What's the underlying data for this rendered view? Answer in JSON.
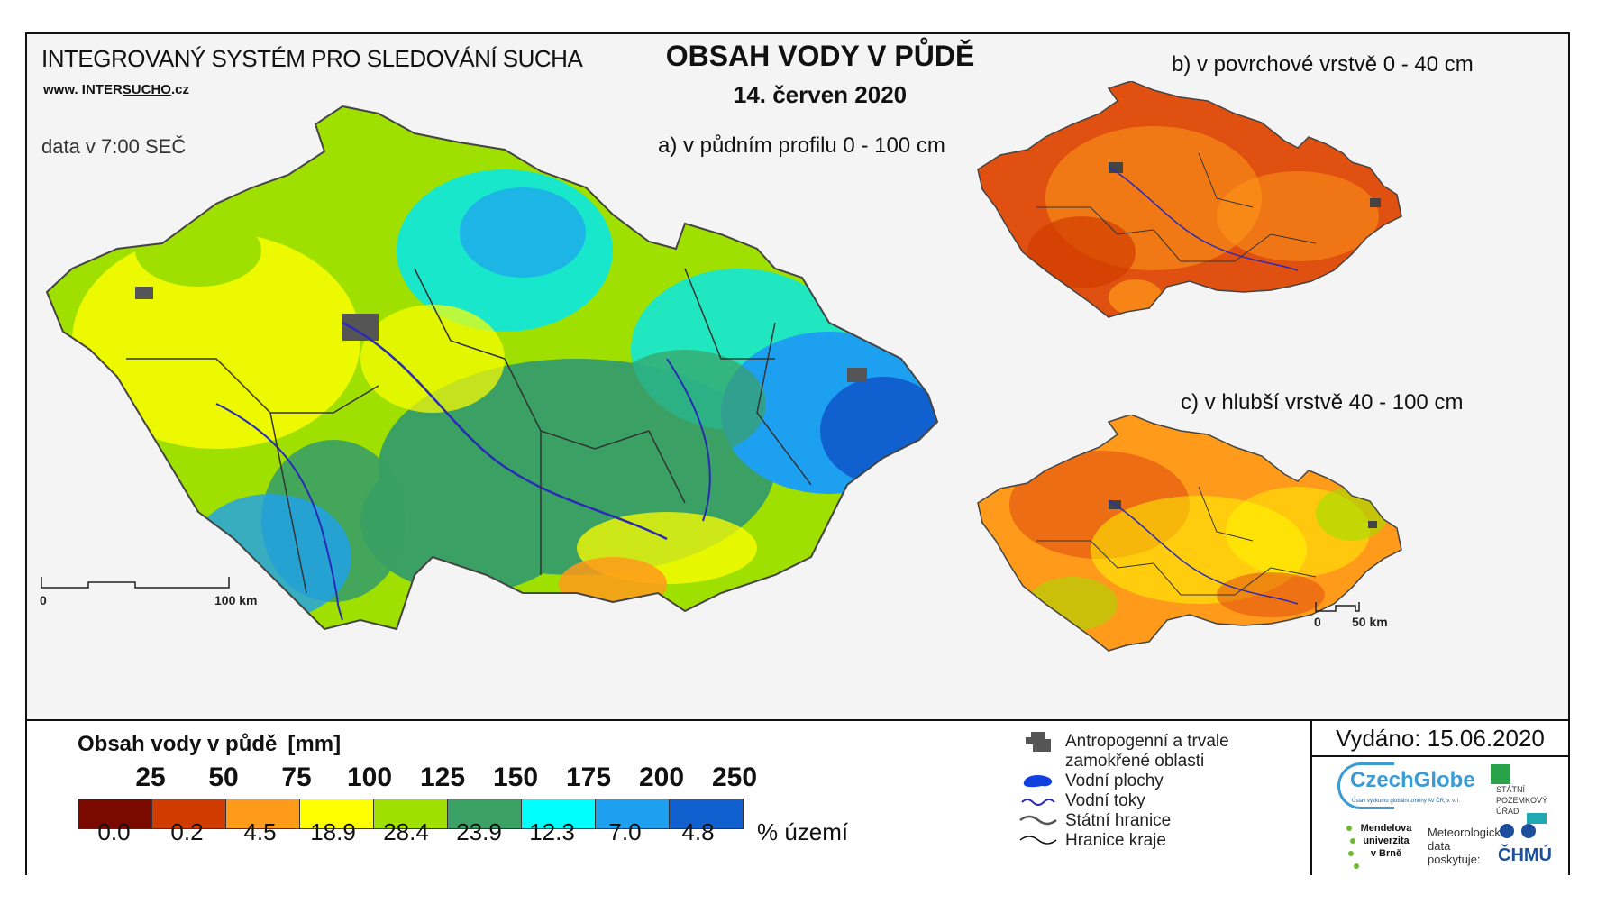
{
  "header": {
    "system_name": "INTEGROVANÝ SYSTÉM PRO SLEDOVÁNÍ SUCHA",
    "url_prefix": "www. INTER",
    "url_highlight": "SUCHO",
    "url_suffix": ".cz",
    "data_time": "data v 7:00 SEČ",
    "title": "OBSAH VODY V PŮDĚ",
    "date": "14. červen 2020"
  },
  "maps": {
    "a_label": "a) v půdním profilu 0 - 100 cm",
    "b_label": "b) v povrchové vrstvě 0 - 40 cm",
    "c_label": "c) v hlubší vrstvě 40 - 100 cm",
    "a_dominant_colors": [
      "#9fe000",
      "#3aa064",
      "#ffff00",
      "#00e8f0",
      "#1ea0f0",
      "#1060d0"
    ],
    "b_dominant_colors": [
      "#e05010",
      "#ff9a1a",
      "#d03c00"
    ],
    "c_dominant_colors": [
      "#ff9a1a",
      "#ffff00",
      "#e05010",
      "#9fe000"
    ]
  },
  "scale_main": {
    "start": "0",
    "end": "100 km"
  },
  "scale_small": {
    "start": "0",
    "end": "50 km"
  },
  "legend": {
    "title": "Obsah vody v půdě",
    "unit": "[mm]",
    "values": [
      "25",
      "50",
      "75",
      "100",
      "125",
      "150",
      "175",
      "200",
      "250"
    ],
    "classes": [
      {
        "color": "#7a0a00",
        "pct": "0.0"
      },
      {
        "color": "#d03c00",
        "pct": "0.2"
      },
      {
        "color": "#ff9a1a",
        "pct": "4.5"
      },
      {
        "color": "#ffff00",
        "pct": "18.9"
      },
      {
        "color": "#9fe000",
        "pct": "28.4"
      },
      {
        "color": "#3aa064",
        "pct": "23.9"
      },
      {
        "color": "#00ffff",
        "pct": "12.3"
      },
      {
        "color": "#1ea0f0",
        "pct": "7.0"
      },
      {
        "color": "#1060d0",
        "pct": "4.8"
      }
    ],
    "pct_label": "% území"
  },
  "symbols": [
    {
      "icon": "anthropogenic-area-icon",
      "label_line1": "Antropogenní a trvale",
      "label_line2": "zamokřené oblasti"
    },
    {
      "icon": "water-body-icon",
      "label_line1": "Vodní plochy",
      "label_line2": ""
    },
    {
      "icon": "watercourse-icon",
      "label_line1": "Vodní toky",
      "label_line2": ""
    },
    {
      "icon": "state-border-icon",
      "label_line1": "Státní hranice",
      "label_line2": ""
    },
    {
      "icon": "region-border-icon",
      "label_line1": "Hranice kraje",
      "label_line2": ""
    }
  ],
  "issued": "Vydáno: 15.06.2020",
  "logos": {
    "czechglobe": "CzechGlobe",
    "czechglobe_sub": "Ústav výzkumu globální změny AV ČR, v. v. i.",
    "spu": [
      "STÁTNÍ",
      "POZEMKOVÝ",
      "ÚŘAD"
    ],
    "mendel": [
      "Mendelova",
      "univerzita",
      "v Brně"
    ],
    "met": [
      "Meteorologická",
      "data",
      "poskytuje:"
    ],
    "chmu": "ČHMÚ"
  }
}
